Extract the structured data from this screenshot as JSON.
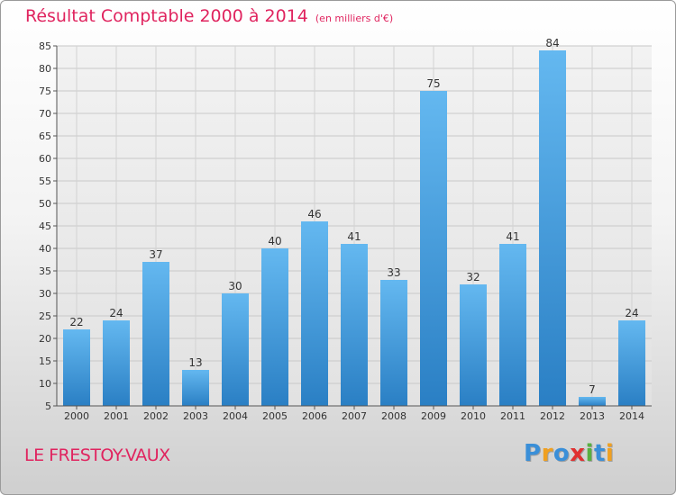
{
  "title": "Résultat Comptable 2000 à 2014",
  "subtitle": "(en milliers d'€)",
  "location": "LE FRESTOY-VAUX",
  "logo": {
    "text": "Proxiti",
    "colors": [
      "#3a8fd8",
      "#f0a020",
      "#3a8fd8",
      "#e03030",
      "#58b040",
      "#3a8fd8",
      "#f0a020"
    ]
  },
  "colors": {
    "title": "#e0245f",
    "bar_light": "#64b8f0",
    "bar_dark": "#2a7fc4"
  },
  "chart_data": {
    "type": "bar",
    "categories": [
      "2000",
      "2001",
      "2002",
      "2003",
      "2004",
      "2005",
      "2006",
      "2007",
      "2008",
      "2009",
      "2010",
      "2011",
      "2012",
      "2013",
      "2014"
    ],
    "values": [
      22,
      24,
      37,
      13,
      30,
      40,
      46,
      41,
      33,
      75,
      32,
      41,
      84,
      7,
      24
    ],
    "title": "Résultat Comptable 2000 à 2014",
    "subtitle": "(en milliers d'€)",
    "ylim": [
      5,
      85
    ],
    "yticks": [
      5,
      10,
      15,
      20,
      25,
      30,
      35,
      40,
      45,
      50,
      55,
      60,
      65,
      70,
      75,
      80,
      85
    ],
    "grid": true
  }
}
